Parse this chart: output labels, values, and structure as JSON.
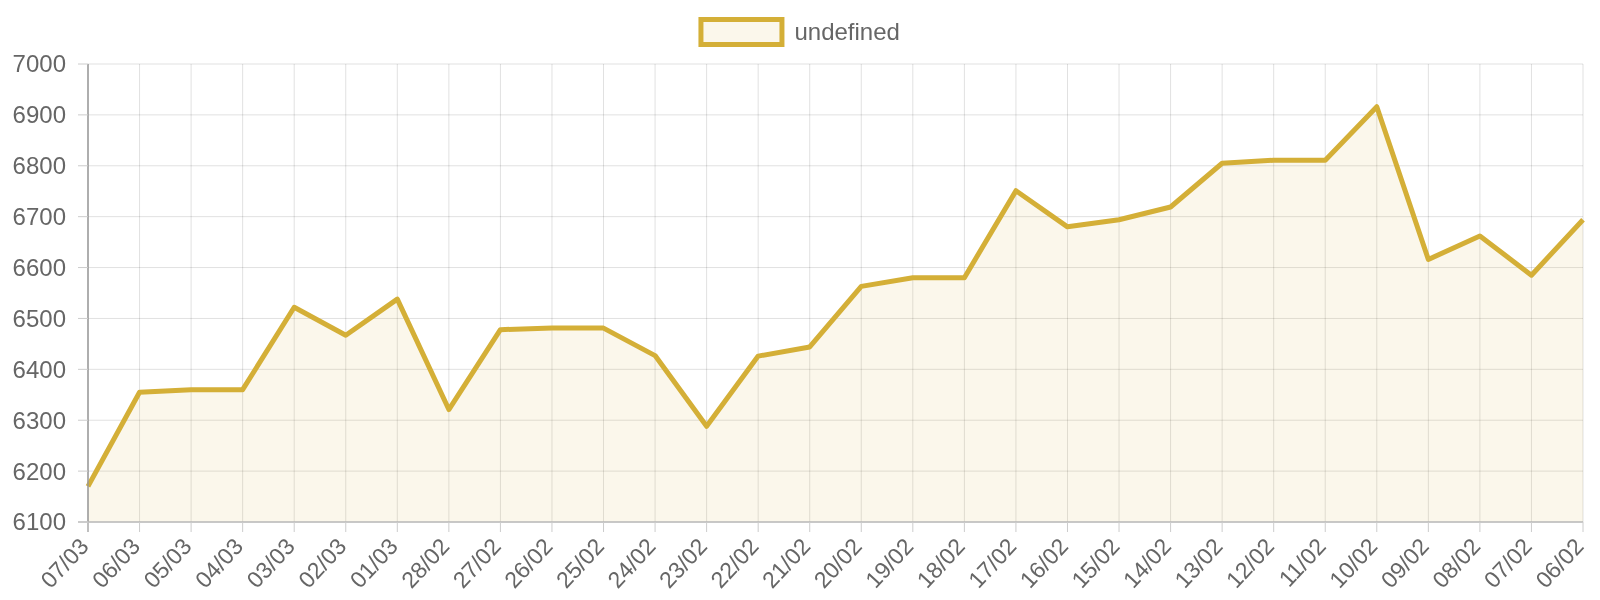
{
  "chart_data": {
    "type": "area",
    "categories": [
      "07/03",
      "06/03",
      "05/03",
      "04/03",
      "03/03",
      "02/03",
      "01/03",
      "28/02",
      "27/02",
      "26/02",
      "25/02",
      "24/02",
      "23/02",
      "22/02",
      "21/02",
      "20/02",
      "19/02",
      "18/02",
      "17/02",
      "16/02",
      "15/02",
      "14/02",
      "13/02",
      "12/02",
      "11/02",
      "10/02",
      "09/02",
      "08/02",
      "07/02",
      "06/02"
    ],
    "series": [
      {
        "name": "undefined",
        "color": "#d4af37",
        "values": [
          6170,
          6355,
          6360,
          6360,
          6522,
          6467,
          6538,
          6321,
          6478,
          6481,
          6481,
          6427,
          6288,
          6426,
          6444,
          6563,
          6580,
          6580,
          6751,
          6680,
          6694,
          6719,
          6805,
          6811,
          6811,
          6916,
          6616,
          6662,
          6585,
          6694
        ]
      }
    ],
    "ylim": [
      6100,
      7000
    ],
    "yticks": [
      6100,
      6200,
      6300,
      6400,
      6500,
      6600,
      6700,
      6800,
      6900,
      7000
    ],
    "grid": true,
    "legend": "top"
  }
}
